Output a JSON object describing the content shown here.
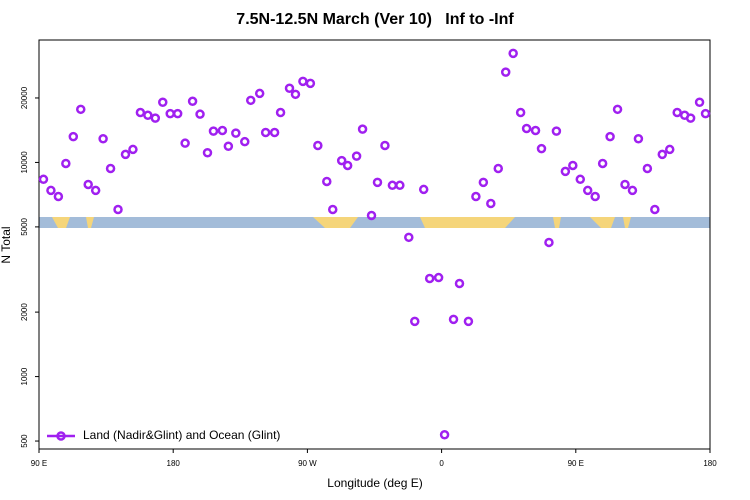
{
  "chart_data": {
    "type": "scatter",
    "title": "7.5N-12.5N March (Ver 10)   Inf to -Inf",
    "xlabel": "Longitude (deg E)",
    "ylabel": "N Total",
    "xlim": [
      90,
      540
    ],
    "ylim": [
      459,
      37300
    ],
    "log_y": true,
    "legend_position": "lower left",
    "xticks": [
      {
        "value": 90,
        "label": "90 E"
      },
      180,
      {
        "value": 270,
        "label": "90 W"
      },
      {
        "value": 360,
        "label": "0"
      },
      {
        "value": 450,
        "label": "90 E"
      },
      {
        "value": 540,
        "label": "180"
      }
    ],
    "yticks": [
      500,
      1000,
      2000,
      5000,
      10000,
      20000
    ],
    "series": [
      {
        "name": "Land (Nadir&Glint) and Ocean (Glint)",
        "color": "#a020f0",
        "x": [
          93,
          98,
          103,
          108,
          113,
          118,
          123,
          128,
          133,
          138,
          143,
          148,
          153,
          158,
          163,
          168,
          173,
          178,
          183,
          188,
          193,
          198,
          203,
          207,
          213,
          217,
          222,
          228,
          232,
          238,
          242,
          248,
          252,
          258,
          262,
          267,
          272,
          277,
          283,
          287,
          293,
          297,
          303,
          307,
          313,
          317,
          322,
          327,
          332,
          338,
          342,
          348,
          352,
          358,
          362,
          368,
          372,
          378,
          383,
          388,
          393,
          398,
          403,
          408,
          413,
          417,
          423,
          427,
          432,
          437,
          443,
          448,
          453,
          458,
          463,
          468,
          473,
          478,
          483,
          488,
          492,
          498,
          503,
          508,
          513,
          518,
          523,
          527,
          533,
          537
        ],
        "values": [
          8340,
          7400,
          6930,
          9890,
          13200,
          17700,
          7890,
          7400,
          12900,
          9370,
          6030,
          10900,
          11500,
          17100,
          16600,
          16100,
          19100,
          16900,
          16900,
          12300,
          19300,
          16800,
          11100,
          14000,
          14100,
          11900,
          13700,
          12500,
          19500,
          21000,
          13800,
          13800,
          17100,
          22200,
          20800,
          23900,
          23400,
          12000,
          8150,
          6030,
          10200,
          9680,
          10700,
          14300,
          5650,
          8070,
          12000,
          7820,
          7820,
          4470,
          1810,
          7480,
          2870,
          2900,
          535,
          1850,
          2720,
          1810,
          6930,
          8070,
          6430,
          9370,
          26400,
          32300,
          17100,
          14400,
          14100,
          11600,
          4230,
          14000,
          9080,
          9680,
          8340,
          7400,
          6930,
          9890,
          13200,
          17700,
          7890,
          7400,
          12900,
          9370,
          6030,
          10900,
          11500,
          17100,
          16600,
          16100,
          19100,
          16900
        ]
      }
    ]
  }
}
